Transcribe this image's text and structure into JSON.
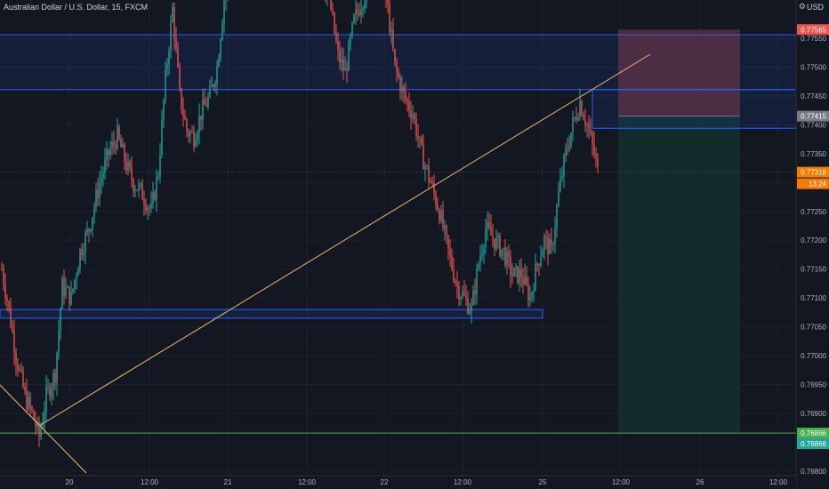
{
  "symbol": "Australian Dollar / U.S. Dollar, 15, FXCM",
  "currency": "USD",
  "colors": {
    "background": "#131722",
    "up": "#26a69a",
    "down": "#ef5350",
    "zone_stroke": "#2962ff",
    "trendline": "#f0b86a",
    "stop_fill": "#5c2b31",
    "target_fill": "#122f2c",
    "price_label": "#f57c00"
  },
  "price_axis": {
    "ticks": [
      "0.77550",
      "0.77500",
      "0.77450",
      "0.77400",
      "0.77350",
      "0.77300",
      "0.77250",
      "0.77200",
      "0.77150",
      "0.77100",
      "0.77050",
      "0.77000",
      "0.76950",
      "0.76900",
      "0.76800"
    ],
    "tick_values": [
      0.7755,
      0.775,
      0.7745,
      0.774,
      0.7735,
      0.773,
      0.7725,
      0.772,
      0.7715,
      0.771,
      0.7705,
      0.77,
      0.7695,
      0.769,
      0.768
    ]
  },
  "price_labels": {
    "stop": "0.77565",
    "entry": "0.77415",
    "current": "0.77318",
    "countdown": "13:24",
    "target_top": "0.76866",
    "target_bottom": "0.76866"
  },
  "time_axis": {
    "labels": [
      "20",
      "12:00",
      "21",
      "12:00",
      "22",
      "12:00",
      "25",
      "12:00",
      "26",
      "12:00"
    ]
  },
  "drawings": {
    "zone_upper_top": 0.77556,
    "zone_upper_bottom": 0.77461,
    "zone_lower_top": 0.7708,
    "zone_lower_bottom": 0.77065,
    "position_stop": 0.77565,
    "position_entry": 0.77415,
    "position_target": 0.76866,
    "position_level_line": 0.77394
  }
}
